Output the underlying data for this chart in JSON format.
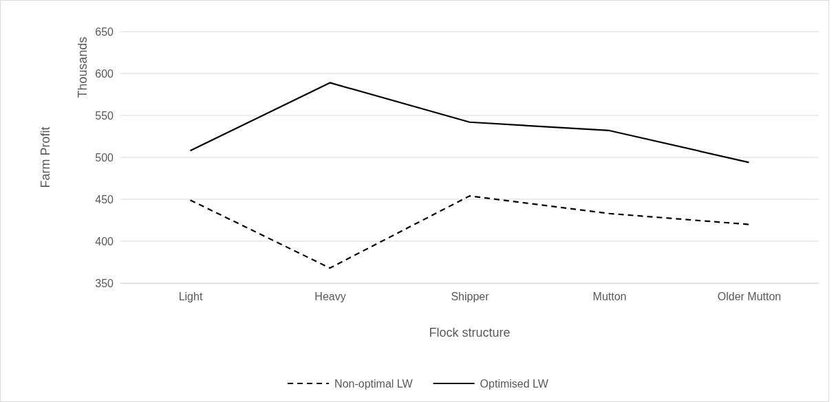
{
  "chart_data": {
    "type": "line",
    "xlabel": "Flock structure",
    "ylabel": "Farm Profit",
    "annotations": [
      "Thousands"
    ],
    "categories": [
      "Light",
      "Heavy",
      "Shipper",
      "Mutton",
      "Older Mutton"
    ],
    "series": [
      {
        "name": "Non-optimal LW",
        "color": "#000000",
        "line_style": "dashed",
        "values": [
          449,
          368,
          454,
          433,
          420
        ]
      },
      {
        "name": "Optimised LW",
        "color": "#000000",
        "line_style": "solid",
        "values": [
          508,
          589,
          542,
          532,
          494
        ]
      }
    ],
    "ylim": [
      350,
      650
    ],
    "yticks": [
      350,
      400,
      450,
      500,
      550,
      600,
      650
    ],
    "grid": "y",
    "legend": "bottom",
    "marker": "none"
  }
}
